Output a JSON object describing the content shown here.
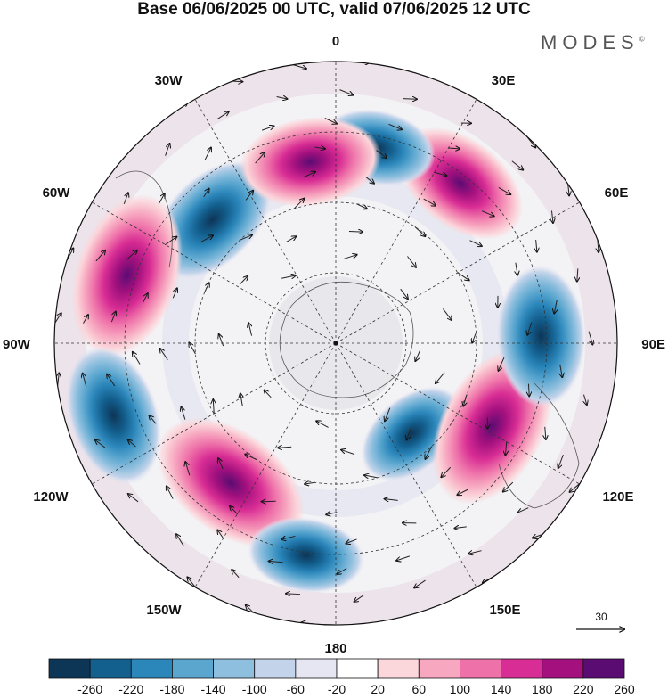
{
  "title": "Base 06/06/2025 00 UTC, valid 07/06/2025 12 UTC",
  "logo": "MODES",
  "logo_mark": "©",
  "longitude_labels": {
    "top": "0",
    "bottom": "180",
    "left": "90W",
    "right": "90E",
    "ul30": "30W",
    "ul60": "60W",
    "ur30": "30E",
    "ur60": "60E",
    "ll120": "120W",
    "ll150": "150W",
    "lr120": "120E",
    "lr150": "150E"
  },
  "reference_vector": "30",
  "colorbar": {
    "labels": [
      "-260",
      "-220",
      "-180",
      "-140",
      "-100",
      "-60",
      "-20",
      "20",
      "60",
      "100",
      "140",
      "180",
      "220",
      "260"
    ],
    "colors": [
      "#0d3556",
      "#135f8e",
      "#2b86ba",
      "#5aa6cf",
      "#8fbfde",
      "#c3d4ea",
      "#e6e6f2",
      "#ffffff",
      "#fbd6db",
      "#f7a7c0",
      "#ee71a9",
      "#d82d94",
      "#a4117f",
      "#5b0c72"
    ]
  },
  "anomalies": [
    {
      "type": "negative",
      "lon": -45,
      "ring": 0.62,
      "strength": 3
    },
    {
      "type": "positive",
      "lon": -72,
      "ring": 0.78,
      "strength": 4
    },
    {
      "type": "negative",
      "lon": -108,
      "ring": 0.83,
      "strength": 3
    },
    {
      "type": "positive",
      "lon": -143,
      "ring": 0.62,
      "strength": 4
    },
    {
      "type": "negative",
      "lon": -172,
      "ring": 0.76,
      "strength": 2
    },
    {
      "type": "negative",
      "lon": 140,
      "ring": 0.42,
      "strength": 2
    },
    {
      "type": "positive",
      "lon": 118,
      "ring": 0.63,
      "strength": 4
    },
    {
      "type": "negative",
      "lon": 88,
      "ring": 0.73,
      "strength": 3
    },
    {
      "type": "positive",
      "lon": 38,
      "ring": 0.72,
      "strength": 3
    },
    {
      "type": "negative",
      "lon": 12,
      "ring": 0.71,
      "strength": 2
    },
    {
      "type": "positive",
      "lon": -8,
      "ring": 0.65,
      "strength": 3
    }
  ]
}
